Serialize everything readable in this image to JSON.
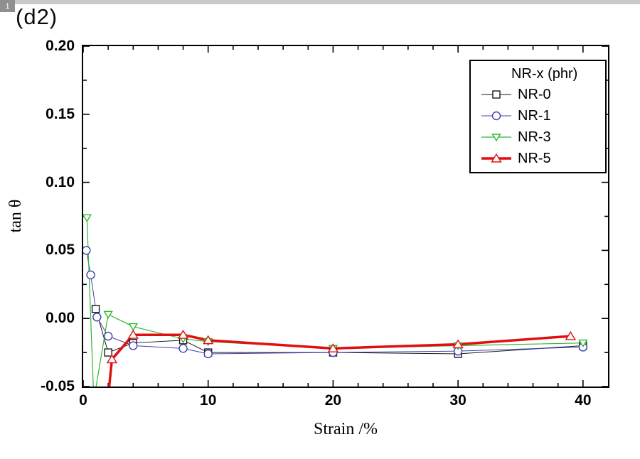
{
  "page": {
    "corner_badge": "1"
  },
  "chart_data": {
    "type": "line",
    "panel_label": "(d2)",
    "xlabel": "Strain /%",
    "ylabel": "tan θ",
    "xlim": [
      0,
      42
    ],
    "ylim": [
      -0.05,
      0.2
    ],
    "grid": false,
    "x_ticks": {
      "values": [
        0,
        10,
        20,
        30,
        40
      ],
      "labels": [
        "0",
        "10",
        "20",
        "30",
        "40"
      ]
    },
    "y_ticks": {
      "values": [
        -0.05,
        0.0,
        0.05,
        0.1,
        0.15,
        0.2
      ],
      "labels": [
        "-0.05",
        "0.00",
        "0.05",
        "0.10",
        "0.15",
        "0.20"
      ]
    },
    "x_minor_step": 2,
    "y_minor_step": 0.025,
    "legend": {
      "title": "NR-x (phr)",
      "position": "top-right"
    },
    "series": [
      {
        "name": "NR-0",
        "color": "#1a1a1a",
        "marker": "square",
        "line_width": 1,
        "marker_size": 5,
        "points": [
          [
            1,
            0.007
          ],
          [
            2,
            -0.025
          ],
          [
            4,
            -0.018
          ],
          [
            8,
            -0.016
          ],
          [
            10,
            -0.025
          ],
          [
            20,
            -0.025
          ],
          [
            30,
            -0.026
          ],
          [
            40,
            -0.02
          ]
        ]
      },
      {
        "name": "NR-1",
        "color": "#4040b0",
        "marker": "circle",
        "line_width": 1,
        "marker_size": 5.5,
        "points": [
          [
            0.25,
            0.05
          ],
          [
            0.6,
            0.032
          ],
          [
            1.1,
            0.001
          ],
          [
            2,
            -0.013
          ],
          [
            4,
            -0.02
          ],
          [
            8,
            -0.022
          ],
          [
            10,
            -0.026
          ],
          [
            20,
            -0.025
          ],
          [
            30,
            -0.024
          ],
          [
            40,
            -0.021
          ]
        ]
      },
      {
        "name": "NR-3",
        "color": "#2eb82e",
        "marker": "triangle-down",
        "line_width": 1.2,
        "marker_size": 5.5,
        "points": [
          [
            0.3,
            0.074
          ],
          [
            0.85,
            -0.06
          ],
          [
            2,
            0.003
          ],
          [
            4,
            -0.006
          ],
          [
            8,
            -0.015
          ],
          [
            10,
            -0.017
          ],
          [
            20,
            -0.022
          ],
          [
            30,
            -0.02
          ],
          [
            40,
            -0.018
          ]
        ]
      },
      {
        "name": "NR-5",
        "color": "#e01010",
        "marker": "triangle-up",
        "line_width": 3.5,
        "marker_size": 6.5,
        "points": [
          [
            1.95,
            -0.062
          ],
          [
            2.3,
            -0.03
          ],
          [
            4,
            -0.012
          ],
          [
            8,
            -0.012
          ],
          [
            10,
            -0.016
          ],
          [
            20,
            -0.022
          ],
          [
            30,
            -0.019
          ],
          [
            39,
            -0.013
          ]
        ]
      }
    ]
  }
}
